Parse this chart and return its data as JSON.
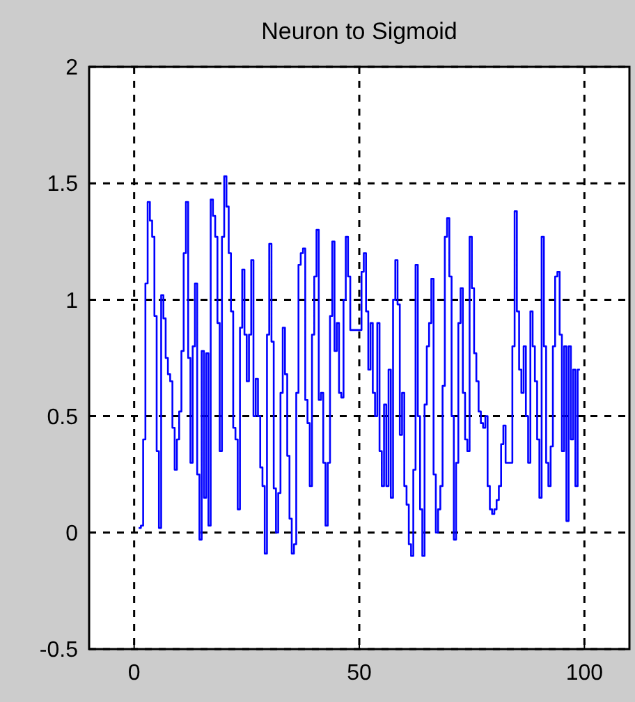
{
  "chart_data": {
    "type": "step",
    "title": "Neuron to Sigmoid",
    "x": [
      1,
      1.5,
      2,
      2.5,
      3,
      3.5,
      4,
      4.5,
      5,
      5.5,
      6,
      6.5,
      7,
      7.5,
      8,
      8.5,
      9,
      9.5,
      10,
      10.5,
      11,
      11.5,
      12,
      12.5,
      13,
      13.5,
      14,
      14.5,
      15,
      15.5,
      16,
      16.5,
      17,
      17.5,
      18,
      18.5,
      19,
      19.5,
      20,
      20.5,
      21,
      21.5,
      22,
      22.5,
      23,
      23.5,
      24,
      24.5,
      25,
      25.5,
      26,
      26.5,
      27,
      27.5,
      28,
      28.5,
      29,
      29.5,
      30,
      30.5,
      31,
      31.5,
      32,
      32.5,
      33,
      33.5,
      34,
      34.5,
      35,
      35.5,
      36,
      36.5,
      37,
      37.5,
      38,
      38.5,
      39,
      39.5,
      40,
      40.5,
      41,
      41.5,
      42,
      42.5,
      43,
      43.5,
      44,
      44.5,
      45,
      45.5,
      46,
      46.5,
      47,
      47.5,
      48,
      50.5,
      51,
      51.5,
      52,
      52.5,
      53,
      53.5,
      54,
      54.5,
      55,
      55.5,
      56,
      56.5,
      57,
      57.5,
      58,
      58.5,
      59,
      59.5,
      60,
      60.5,
      61,
      61.5,
      62,
      62.5,
      63,
      63.5,
      64,
      64.5,
      65,
      65.5,
      66,
      66.5,
      67,
      67.5,
      68,
      68.5,
      69,
      69.5,
      70,
      70.5,
      71,
      71.5,
      72,
      72.5,
      73,
      73.5,
      74,
      74.5,
      75,
      75.5,
      76,
      76.5,
      77,
      77.5,
      78,
      78.5,
      79,
      79.5,
      80,
      80.5,
      81,
      81.5,
      82,
      82.5,
      83,
      83.5,
      84,
      84.5,
      85,
      85.5,
      86,
      86.5,
      87,
      87.5,
      88,
      88.5,
      89,
      89.5,
      90,
      90.5,
      91,
      91.5,
      92,
      92.5,
      93,
      93.5,
      94,
      94.5,
      95,
      95.5,
      96,
      96.5,
      97,
      97.5,
      98,
      98.5,
      99
    ],
    "series": [
      {
        "color": "#0000ff",
        "values": [
          0.02,
          0.03,
          0.4,
          1.07,
          1.42,
          1.34,
          1.27,
          0.93,
          0.35,
          0.02,
          1.02,
          0.92,
          0.75,
          0.68,
          0.65,
          0.45,
          0.27,
          0.4,
          0.52,
          0.78,
          1.2,
          1.42,
          0.75,
          0.3,
          0.8,
          1.07,
          0.25,
          -0.03,
          0.78,
          0.15,
          0.77,
          0.03,
          1.43,
          1.36,
          1.27,
          0.9,
          0.35,
          1.27,
          1.53,
          1.4,
          1.2,
          0.95,
          0.45,
          0.4,
          0.1,
          0.88,
          1.13,
          0.85,
          0.65,
          0.85,
          1.17,
          0.5,
          0.66,
          0.5,
          0.28,
          0.2,
          -0.09,
          0.85,
          1.24,
          0.82,
          0.19,
          0.0,
          0.17,
          0.6,
          0.88,
          0.68,
          0.33,
          0.06,
          -0.09,
          -0.05,
          0.6,
          1.15,
          1.2,
          1.22,
          0.57,
          0.47,
          0.2,
          0.85,
          1.1,
          1.3,
          0.57,
          0.6,
          0.3,
          0.03,
          0.3,
          0.93,
          1.25,
          0.78,
          0.9,
          0.6,
          0.58,
          1.0,
          1.27,
          1.1,
          0.87,
          1.12,
          1.2,
          0.95,
          0.7,
          0.9,
          0.6,
          0.5,
          0.9,
          0.35,
          0.2,
          0.55,
          0.2,
          0.7,
          0.15,
          1.0,
          1.17,
          0.98,
          0.42,
          0.6,
          0.2,
          0.12,
          -0.05,
          -0.1,
          0.27,
          1.15,
          0.5,
          0.1,
          -0.1,
          0.55,
          0.8,
          0.9,
          1.09,
          0.25,
          0.0,
          0.1,
          0.2,
          0.63,
          1.27,
          1.35,
          1.1,
          0.5,
          -0.03,
          0.3,
          0.9,
          1.05,
          0.6,
          0.4,
          0.35,
          1.27,
          1.05,
          0.77,
          0.65,
          0.52,
          0.47,
          0.45,
          0.5,
          0.2,
          0.1,
          0.08,
          0.1,
          0.14,
          0.2,
          0.38,
          0.46,
          0.3,
          0.3,
          0.3,
          0.8,
          1.38,
          0.95,
          0.7,
          0.6,
          0.8,
          0.5,
          0.3,
          0.95,
          0.8,
          0.65,
          0.4,
          0.15,
          1.27,
          0.8,
          0.3,
          0.2,
          0.37,
          0.8,
          1.1,
          1.12,
          0.85,
          0.35,
          0.8,
          0.05,
          0.8,
          0.4,
          0.7,
          0.2,
          0.7,
          0.7
        ]
      }
    ],
    "xlim": [
      -10,
      110
    ],
    "xticks": [
      0,
      50,
      100
    ],
    "ylim": [
      -0.5,
      2
    ],
    "yticks": [
      -0.5,
      0,
      0.5,
      1,
      1.5,
      2
    ],
    "grid": true,
    "line_style": "solid"
  }
}
